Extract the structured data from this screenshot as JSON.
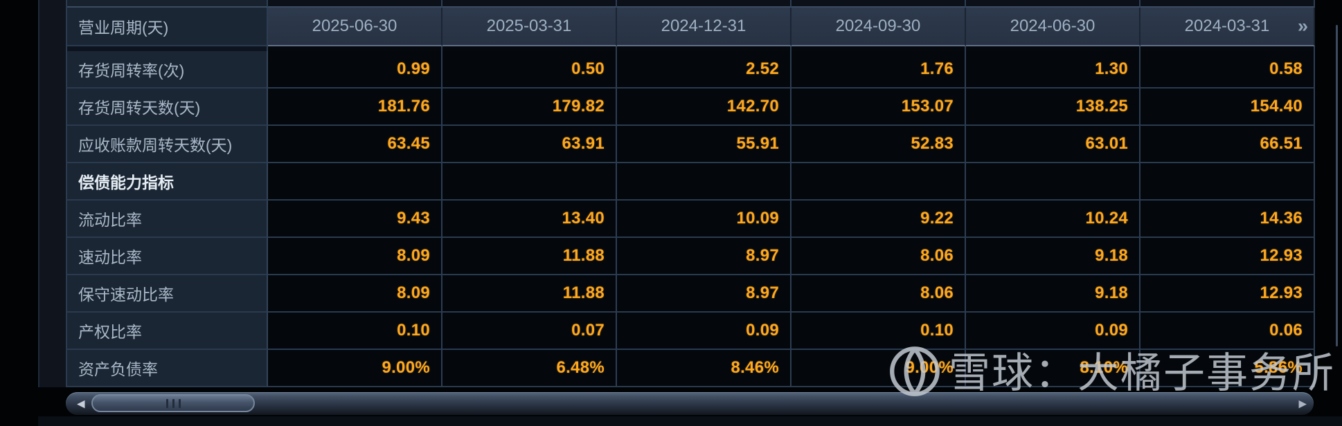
{
  "table": {
    "header": {
      "label": "营业周期(天)",
      "dates": [
        "2025-06-30",
        "2025-03-31",
        "2024-12-31",
        "2024-09-30",
        "2024-06-30",
        "2024-03-31"
      ],
      "more_icon": "»"
    },
    "rows": [
      {
        "label": "存货周转率(次)",
        "section": false,
        "values": [
          "0.99",
          "0.50",
          "2.52",
          "1.76",
          "1.30",
          "0.58"
        ]
      },
      {
        "label": "存货周转天数(天)",
        "section": false,
        "values": [
          "181.76",
          "179.82",
          "142.70",
          "153.07",
          "138.25",
          "154.40"
        ]
      },
      {
        "label": "应收账款周转天数(天)",
        "section": false,
        "values": [
          "63.45",
          "63.91",
          "55.91",
          "52.83",
          "63.01",
          "66.51"
        ]
      },
      {
        "label": "偿债能力指标",
        "section": true,
        "values": [
          "",
          "",
          "",
          "",
          "",
          ""
        ]
      },
      {
        "label": "流动比率",
        "section": false,
        "values": [
          "9.43",
          "13.40",
          "10.09",
          "9.22",
          "10.24",
          "14.36"
        ]
      },
      {
        "label": "速动比率",
        "section": false,
        "values": [
          "8.09",
          "11.88",
          "8.97",
          "8.06",
          "9.18",
          "12.93"
        ]
      },
      {
        "label": "保守速动比率",
        "section": false,
        "values": [
          "8.09",
          "11.88",
          "8.97",
          "8.06",
          "9.18",
          "12.93"
        ]
      },
      {
        "label": "产权比率",
        "section": false,
        "values": [
          "0.10",
          "0.07",
          "0.09",
          "0.10",
          "0.09",
          "0.06"
        ]
      },
      {
        "label": "资产负债率",
        "section": false,
        "values": [
          "9.00%",
          "6.48%",
          "8.46%",
          "9.00%",
          "8.10%",
          "5.86%"
        ]
      }
    ]
  },
  "scrollbar": {
    "left_arrow": "◀",
    "right_arrow": "▶"
  },
  "watermark": {
    "text": "雪球：大橘子事务所",
    "logo": "xueqiu-snowball-logo"
  },
  "colors": {
    "value_accent": "#ffa81e",
    "header_text": "#9fb0c3",
    "label_text": "#a9b8c7",
    "section_text": "#e6edf4",
    "label_bg": "#1b2634",
    "header_bg": "#2a3547",
    "cell_bg": "#04080d",
    "grid_border": "#2d3d52",
    "watermark_text": "#c2c8cf"
  }
}
